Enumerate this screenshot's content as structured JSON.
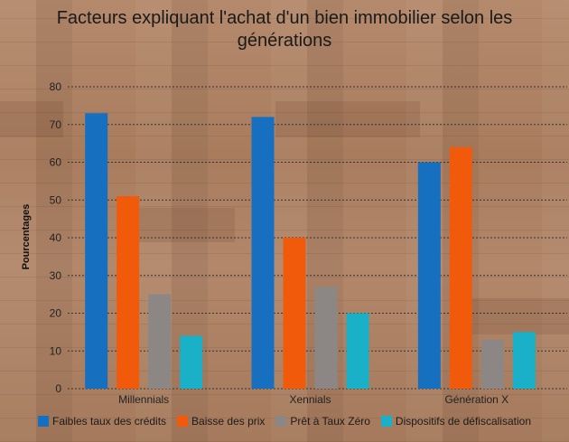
{
  "chart_data": {
    "type": "bar",
    "title_line1": "Facteurs expliquant l'achat d'un bien immobilier selon les",
    "title_line2": "générations",
    "ylabel": "Pourcentages",
    "xlabel": "",
    "categories": [
      "Millennials",
      "Xennials",
      "Génération X"
    ],
    "ylim": [
      0,
      80
    ],
    "yticks": [
      0,
      10,
      20,
      30,
      40,
      50,
      60,
      70,
      80
    ],
    "grid": true,
    "legend_position": "bottom",
    "series": [
      {
        "name": "Faibles taux des crédits",
        "color": "#1670bf",
        "values": [
          73,
          72,
          60
        ]
      },
      {
        "name": "Baisse des prix",
        "color": "#f25a0b",
        "values": [
          51,
          40,
          64
        ]
      },
      {
        "name": "Prêt à Taux Zéro",
        "color": "#8c8785",
        "values": [
          25,
          27,
          13
        ]
      },
      {
        "name": "Dispositifs de défiscalisation",
        "color": "#1ab0c8",
        "values": [
          14,
          20,
          15
        ]
      }
    ]
  }
}
